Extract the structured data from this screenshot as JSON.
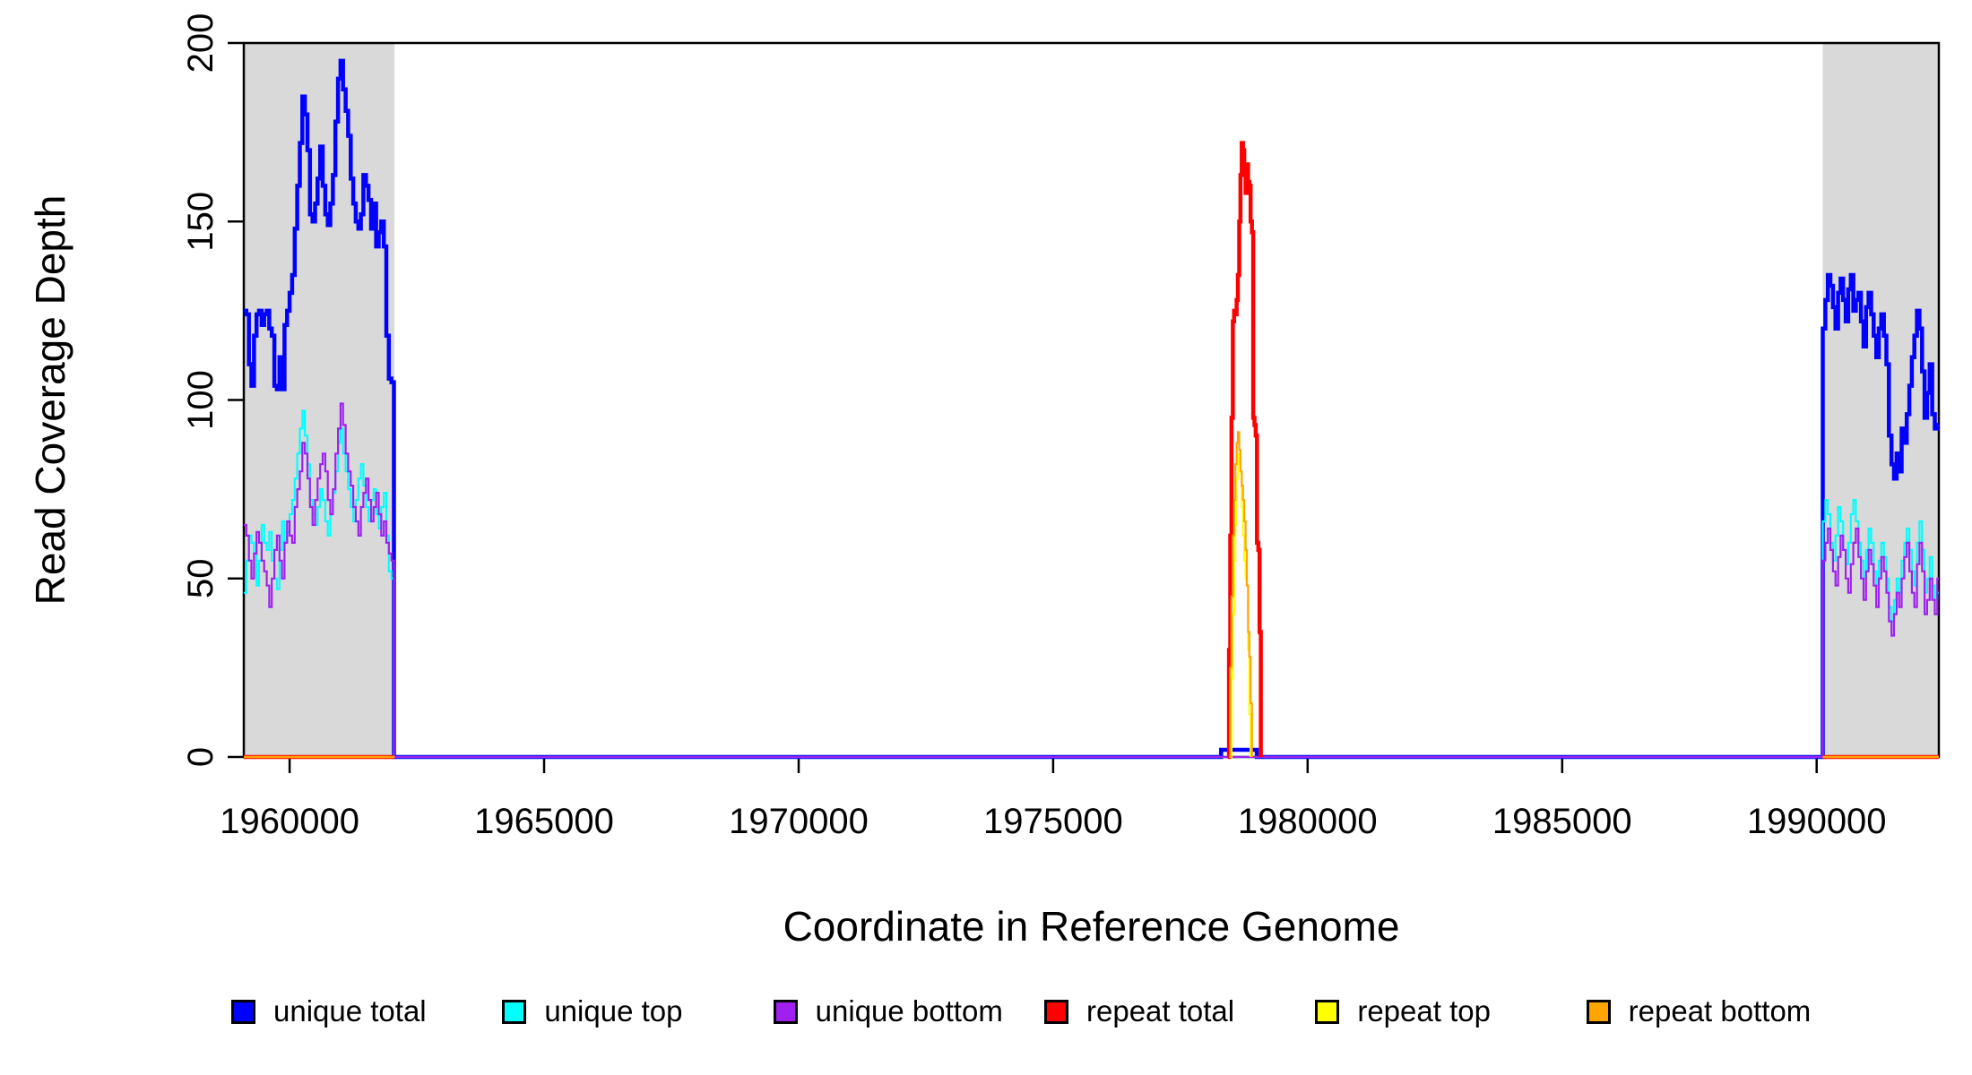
{
  "figure": {
    "xlabel": "Coordinate in Reference Genome",
    "ylabel": "Read Coverage Depth"
  },
  "legend": {
    "items": [
      {
        "label": "unique total",
        "color": "#0000FF"
      },
      {
        "label": "unique top",
        "color": "#00FFFF"
      },
      {
        "label": "unique bottom",
        "color": "#A020F0"
      },
      {
        "label": "repeat total",
        "color": "#FF0000"
      },
      {
        "label": "repeat top",
        "color": "#FFFF00"
      },
      {
        "label": "repeat bottom",
        "color": "#FFA500"
      }
    ]
  },
  "chart_data": {
    "type": "line",
    "subtype": "step",
    "title": "",
    "xlabel": "Coordinate in Reference Genome",
    "ylabel": "Read Coverage Depth",
    "xlim": [
      1959100,
      1992400
    ],
    "ylim": [
      0,
      200
    ],
    "xticks": [
      1960000,
      1965000,
      1970000,
      1975000,
      1980000,
      1985000,
      1990000
    ],
    "yticks": [
      0,
      50,
      100,
      150,
      200
    ],
    "grid": false,
    "legend_position": "bottom",
    "highlight_regions": [
      {
        "x0": 1959100,
        "x1": 1962060,
        "color": "#D9D9D9"
      },
      {
        "x0": 1990120,
        "x1": 1992400,
        "color": "#D9D9D9"
      }
    ],
    "series": [
      {
        "name": "unique total",
        "color": "#0000FF",
        "line_width": 4.5,
        "disjoint": false,
        "segments": [
          {
            "x0": 1959100,
            "dx": 50,
            "v": [
              125,
              124,
              110,
              104,
              118,
              124,
              125,
              121,
              124,
              125,
              120,
              118,
              104,
              103,
              112,
              103,
              121,
              125,
              130,
              135,
              148,
              160,
              172,
              185,
              180,
              170,
              152,
              150,
              155,
              162,
              171,
              160,
              152,
              149,
              155,
              163,
              178,
              190,
              195,
              187,
              181,
              174,
              162,
              155,
              150,
              148,
              152,
              163,
              160,
              156,
              148,
              155,
              143,
              147,
              150,
              143,
              118,
              106,
              105,
              0
            ]
          },
          {
            "x0": 1978300,
            "dx": 100,
            "v": [
              2,
              2,
              2,
              2,
              2,
              2,
              2,
              0
            ]
          },
          {
            "x0": 1990120,
            "dx": 50,
            "v": [
              120,
              128,
              135,
              132,
              126,
              120,
              130,
              134,
              128,
              122,
              131,
              135,
              125,
              128,
              130,
              122,
              115,
              126,
              130,
              124,
              118,
              112,
              120,
              124,
              118,
              110,
              90,
              82,
              78,
              85,
              80,
              92,
              88,
              96,
              104,
              112,
              118,
              125,
              120,
              108,
              95,
              102,
              110,
              96,
              92,
              93
            ]
          }
        ]
      },
      {
        "name": "unique top",
        "color": "#00FFFF",
        "line_width": 2.2,
        "disjoint": false,
        "segments": [
          {
            "x0": 1959100,
            "dx": 50,
            "v": [
              46,
              55,
              62,
              60,
              57,
              48,
              55,
              65,
              60,
              58,
              63,
              55,
              50,
              47,
              58,
              66,
              60,
              63,
              68,
              72,
              78,
              85,
              92,
              97,
              90,
              82,
              72,
              68,
              65,
              70,
              75,
              72,
              66,
              62,
              68,
              74,
              80,
              88,
              92,
              85,
              80,
              75,
              70,
              66,
              72,
              78,
              82,
              76,
              70,
              66,
              72,
              75,
              68,
              64,
              70,
              74,
              62,
              52,
              50,
              0
            ]
          },
          {
            "x0": 1990120,
            "dx": 50,
            "v": [
              66,
              72,
              68,
              60,
              55,
              62,
              70,
              66,
              58,
              54,
              60,
              68,
              72,
              66,
              60,
              55,
              50,
              58,
              64,
              60,
              52,
              48,
              55,
              60,
              56,
              50,
              42,
              38,
              44,
              50,
              46,
              55,
              60,
              64,
              58,
              52,
              48,
              60,
              66,
              58,
              46,
              50,
              56,
              48,
              44,
              46
            ]
          }
        ]
      },
      {
        "name": "unique bottom",
        "color": "#A020F0",
        "line_width": 2.2,
        "disjoint": false,
        "segments": [
          {
            "x0": 1959100,
            "dx": 50,
            "v": [
              65,
              62,
              55,
              50,
              57,
              63,
              60,
              55,
              52,
              48,
              42,
              50,
              58,
              62,
              55,
              50,
              60,
              66,
              62,
              60,
              70,
              75,
              80,
              88,
              85,
              78,
              70,
              65,
              72,
              78,
              82,
              85,
              80,
              72,
              68,
              75,
              85,
              92,
              99,
              93,
              85,
              80,
              76,
              70,
              66,
              62,
              70,
              74,
              78,
              72,
              66,
              70,
              74,
              68,
              62,
              66,
              60,
              57,
              55,
              0
            ]
          },
          {
            "x0": 1990120,
            "dx": 50,
            "v": [
              55,
              60,
              64,
              58,
              52,
              48,
              56,
              62,
              58,
              50,
              46,
              54,
              60,
              64,
              56,
              50,
              44,
              52,
              58,
              54,
              48,
              42,
              50,
              56,
              52,
              46,
              38,
              34,
              40,
              46,
              42,
              50,
              56,
              60,
              52,
              46,
              42,
              54,
              60,
              52,
              40,
              44,
              50,
              44,
              40,
              50
            ]
          }
        ]
      },
      {
        "name": "repeat total",
        "color": "#FF0000",
        "line_width": 4.5,
        "disjoint": true,
        "segments": [
          {
            "x0": 1959100,
            "dx": 2960,
            "v": [
              0,
              0
            ]
          },
          {
            "x0": 1978430,
            "dx": 25,
            "v": [
              0,
              30,
              62,
              95,
              122,
              125,
              124,
              128,
              135,
              150,
              163,
              172,
              170,
              165,
              158,
              166,
              161,
              160,
              150,
              147,
              95,
              93,
              90,
              60,
              58,
              35,
              0
            ]
          },
          {
            "x0": 1990120,
            "dx": 2280,
            "v": [
              0,
              0
            ]
          }
        ]
      },
      {
        "name": "repeat top",
        "color": "#FFFF00",
        "line_width": 2.2,
        "disjoint": true,
        "segments": [
          {
            "x0": 1959100,
            "dx": 2960,
            "v": [
              0,
              0
            ]
          },
          {
            "x0": 1978480,
            "dx": 25,
            "v": [
              0,
              22,
              40,
              55,
              65,
              78,
              85,
              82,
              80,
              70,
              62,
              55,
              50,
              48,
              30,
              12,
              0
            ]
          },
          {
            "x0": 1990120,
            "dx": 2280,
            "v": [
              0,
              0
            ]
          }
        ]
      },
      {
        "name": "repeat bottom",
        "color": "#FFA500",
        "line_width": 2.2,
        "disjoint": true,
        "segments": [
          {
            "x0": 1959100,
            "dx": 2960,
            "v": [
              0,
              0
            ]
          },
          {
            "x0": 1978455,
            "dx": 25,
            "v": [
              0,
              25,
              45,
              62,
              72,
              82,
              88,
              91,
              86,
              80,
              76,
              72,
              66,
              58,
              48,
              35,
              28,
              15,
              0
            ]
          },
          {
            "x0": 1990120,
            "dx": 2280,
            "v": [
              0,
              0
            ]
          }
        ]
      }
    ]
  }
}
